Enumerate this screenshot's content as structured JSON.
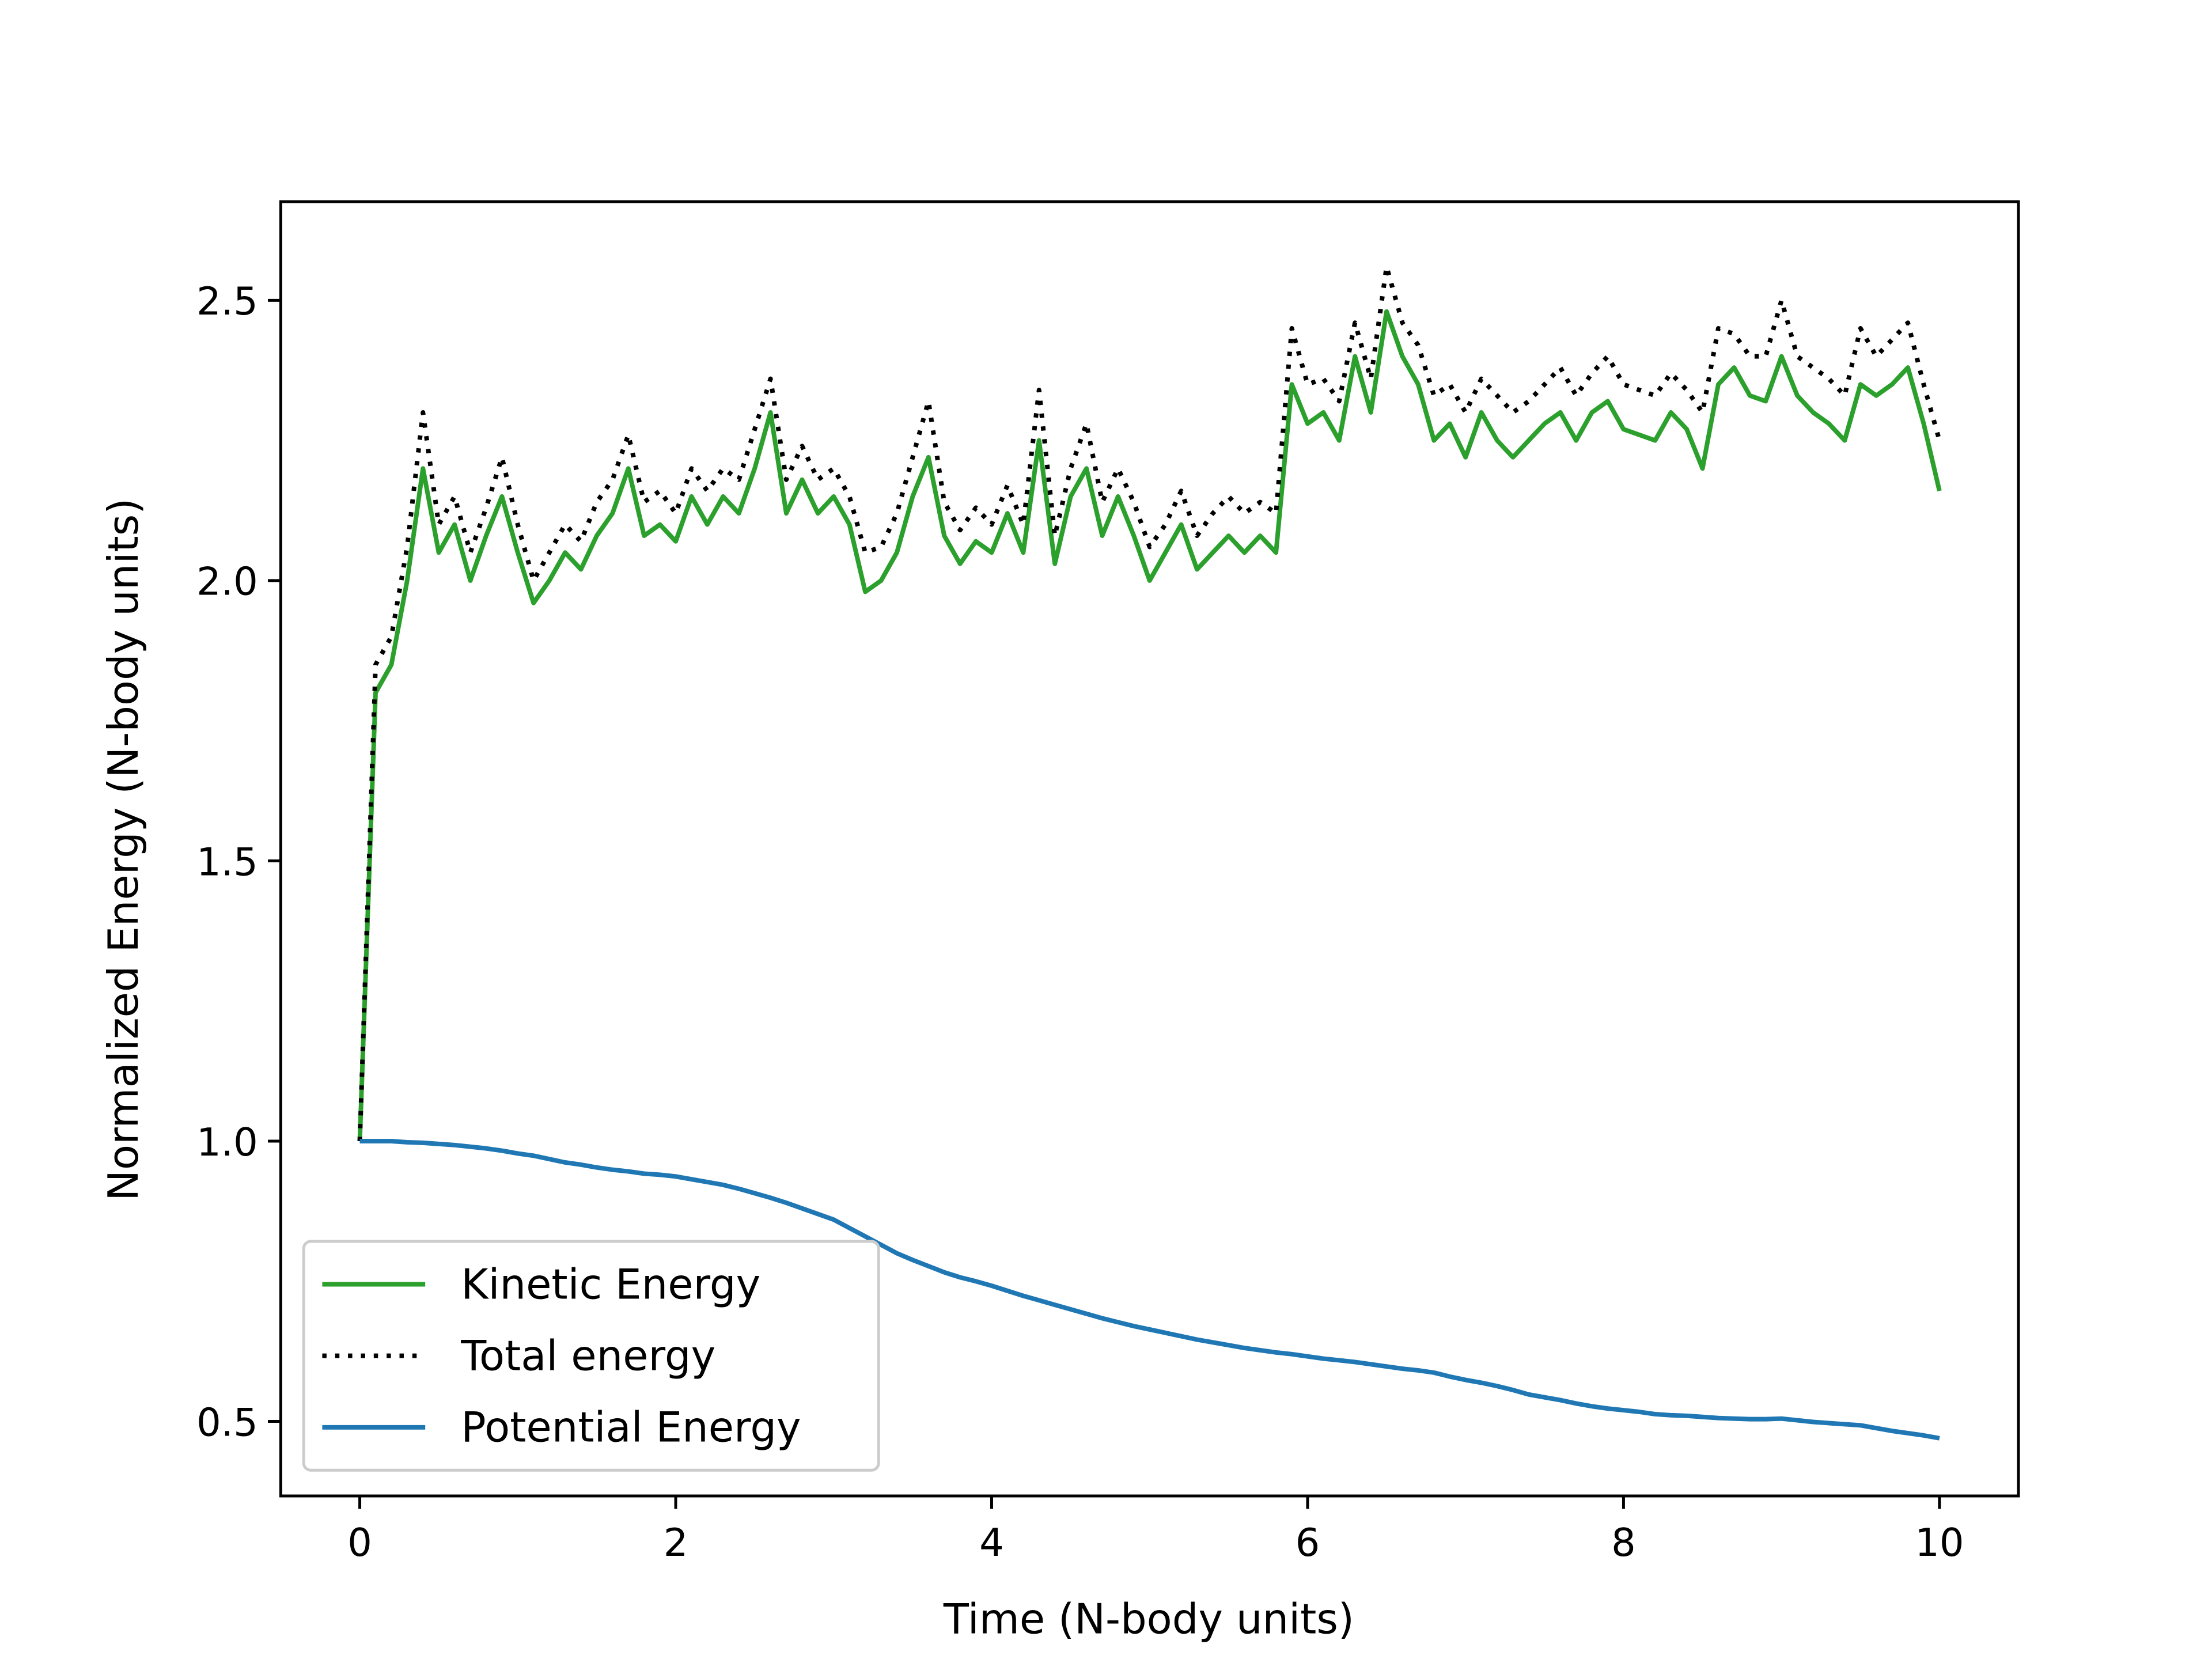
{
  "chart_data": {
    "type": "line",
    "xlabel": "Time (N-body units)",
    "ylabel": "Normalized Energy (N-body units)",
    "x": [
      0,
      0.1,
      0.2,
      0.3,
      0.4,
      0.5,
      0.6,
      0.7,
      0.8,
      0.9,
      1,
      1.1,
      1.2,
      1.3,
      1.4,
      1.5,
      1.6,
      1.7,
      1.8,
      1.9,
      2,
      2.1,
      2.2,
      2.3,
      2.4,
      2.5,
      2.6,
      2.7,
      2.8,
      2.9,
      3,
      3.1,
      3.2,
      3.3,
      3.4,
      3.5,
      3.6,
      3.7,
      3.8,
      3.9,
      4,
      4.1,
      4.2,
      4.3,
      4.4,
      4.5,
      4.6,
      4.7,
      4.8,
      4.9,
      5,
      5.1,
      5.2,
      5.3,
      5.4,
      5.5,
      5.6,
      5.7,
      5.8,
      5.9,
      6,
      6.1,
      6.2,
      6.3,
      6.4,
      6.5,
      6.6,
      6.7,
      6.8,
      6.9,
      7,
      7.1,
      7.2,
      7.3,
      7.4,
      7.5,
      7.6,
      7.7,
      7.8,
      7.9,
      8,
      8.1,
      8.2,
      8.3,
      8.4,
      8.5,
      8.6,
      8.7,
      8.8,
      8.9,
      9,
      9.1,
      9.2,
      9.3,
      9.4,
      9.5,
      9.6,
      9.7,
      9.8,
      9.9,
      10
    ],
    "series": [
      {
        "name": "Kinetic Energy",
        "color": "#2ca02c",
        "style": "solid",
        "values": [
          1.0,
          1.8,
          1.85,
          2.0,
          2.2,
          2.05,
          2.1,
          2.0,
          2.08,
          2.15,
          2.05,
          1.96,
          2.0,
          2.05,
          2.02,
          2.08,
          2.12,
          2.2,
          2.08,
          2.1,
          2.07,
          2.15,
          2.1,
          2.15,
          2.12,
          2.2,
          2.3,
          2.12,
          2.18,
          2.12,
          2.15,
          2.1,
          1.98,
          2.0,
          2.05,
          2.15,
          2.22,
          2.08,
          2.03,
          2.07,
          2.05,
          2.12,
          2.05,
          2.25,
          2.03,
          2.15,
          2.2,
          2.08,
          2.15,
          2.08,
          2.0,
          2.05,
          2.1,
          2.02,
          2.05,
          2.08,
          2.05,
          2.08,
          2.05,
          2.35,
          2.28,
          2.3,
          2.25,
          2.4,
          2.3,
          2.48,
          2.4,
          2.35,
          2.25,
          2.28,
          2.22,
          2.3,
          2.25,
          2.22,
          2.25,
          2.28,
          2.3,
          2.25,
          2.3,
          2.32,
          2.27,
          2.26,
          2.25,
          2.3,
          2.27,
          2.2,
          2.35,
          2.38,
          2.33,
          2.32,
          2.4,
          2.33,
          2.3,
          2.28,
          2.25,
          2.35,
          2.33,
          2.35,
          2.38,
          2.28,
          2.16
        ]
      },
      {
        "name": "Total energy",
        "color": "#000000",
        "style": "dotted",
        "values": [
          1.0,
          1.85,
          1.9,
          2.06,
          2.3,
          2.1,
          2.15,
          2.05,
          2.13,
          2.22,
          2.1,
          2.0,
          2.05,
          2.1,
          2.07,
          2.14,
          2.18,
          2.26,
          2.14,
          2.16,
          2.12,
          2.2,
          2.16,
          2.2,
          2.18,
          2.27,
          2.36,
          2.18,
          2.24,
          2.18,
          2.2,
          2.15,
          2.05,
          2.06,
          2.12,
          2.22,
          2.32,
          2.14,
          2.09,
          2.13,
          2.1,
          2.17,
          2.1,
          2.34,
          2.08,
          2.2,
          2.28,
          2.14,
          2.2,
          2.14,
          2.06,
          2.1,
          2.16,
          2.08,
          2.12,
          2.15,
          2.12,
          2.14,
          2.12,
          2.45,
          2.35,
          2.36,
          2.32,
          2.46,
          2.36,
          2.56,
          2.46,
          2.42,
          2.33,
          2.35,
          2.3,
          2.36,
          2.33,
          2.3,
          2.32,
          2.35,
          2.38,
          2.33,
          2.37,
          2.4,
          2.35,
          2.34,
          2.33,
          2.37,
          2.34,
          2.3,
          2.45,
          2.44,
          2.4,
          2.4,
          2.5,
          2.4,
          2.38,
          2.36,
          2.33,
          2.45,
          2.4,
          2.43,
          2.46,
          2.35,
          2.25
        ]
      },
      {
        "name": "Potential Energy",
        "color": "#1f77b4",
        "style": "solid",
        "values": [
          1.0,
          1.0,
          1.0,
          0.998,
          0.997,
          0.995,
          0.993,
          0.99,
          0.987,
          0.983,
          0.978,
          0.974,
          0.968,
          0.962,
          0.958,
          0.953,
          0.949,
          0.946,
          0.942,
          0.94,
          0.937,
          0.932,
          0.927,
          0.922,
          0.915,
          0.907,
          0.899,
          0.89,
          0.88,
          0.87,
          0.86,
          0.845,
          0.83,
          0.815,
          0.8,
          0.788,
          0.777,
          0.766,
          0.757,
          0.75,
          0.742,
          0.733,
          0.724,
          0.716,
          0.708,
          0.7,
          0.692,
          0.684,
          0.677,
          0.67,
          0.664,
          0.658,
          0.652,
          0.646,
          0.641,
          0.636,
          0.631,
          0.627,
          0.623,
          0.62,
          0.616,
          0.612,
          0.609,
          0.606,
          0.602,
          0.598,
          0.594,
          0.591,
          0.587,
          0.58,
          0.574,
          0.569,
          0.563,
          0.556,
          0.548,
          0.543,
          0.538,
          0.532,
          0.527,
          0.523,
          0.52,
          0.517,
          0.513,
          0.511,
          0.51,
          0.508,
          0.506,
          0.505,
          0.504,
          0.504,
          0.505,
          0.502,
          0.499,
          0.497,
          0.495,
          0.493,
          0.488,
          0.483,
          0.479,
          0.475,
          0.47
        ]
      }
    ],
    "xlim": [
      -0.5,
      10.5
    ],
    "ylim": [
      0.367,
      2.676
    ],
    "xticks": [
      0,
      2,
      4,
      6,
      8,
      10
    ],
    "yticks": [
      0.5,
      {
        "value": 1,
        "label": "1.0"
      },
      1.5,
      {
        "value": 2,
        "label": "2.0"
      },
      2.5
    ],
    "grid": false,
    "legend": "lower left"
  }
}
